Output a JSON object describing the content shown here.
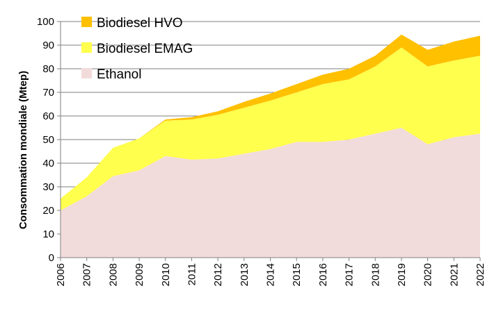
{
  "chart_data": {
    "type": "area",
    "stacked": true,
    "x": [
      "2006",
      "2007",
      "2008",
      "2009",
      "2010",
      "2011",
      "2012",
      "2013",
      "2014",
      "2015",
      "2016",
      "2017",
      "2018",
      "2019",
      "2020",
      "2021",
      "2022"
    ],
    "series": [
      {
        "name": "Ethanol",
        "color": "#f2dcdb",
        "values": [
          20,
          26,
          34.5,
          37,
          43,
          41.5,
          42,
          44,
          46,
          49,
          49,
          50,
          52.5,
          55,
          48,
          51,
          52.5
        ]
      },
      {
        "name": "Biodiesel EMAG",
        "color": "#ffff4d",
        "values": [
          5,
          8,
          12,
          13.5,
          15,
          17,
          18.5,
          19.5,
          20.5,
          21,
          24.5,
          25.5,
          28.5,
          34,
          33,
          32.5,
          33
        ]
      },
      {
        "name": "Biodiesel HVO",
        "color": "#ffc000",
        "values": [
          0,
          0,
          0,
          0,
          0.5,
          1,
          1.5,
          2.5,
          3,
          3.5,
          4,
          4.5,
          4.5,
          5.5,
          7,
          8,
          8.5
        ]
      }
    ],
    "legend_order": [
      "Biodiesel HVO",
      "Biodiesel EMAG",
      "Ethanol"
    ],
    "legend_position": "top-left",
    "ylabel": "Consommation mondiale (Mtep)",
    "xlabel": "",
    "ylim": [
      0,
      100
    ],
    "yticks": [
      "0",
      "10",
      "20",
      "30",
      "40",
      "50",
      "60",
      "70",
      "80",
      "90",
      "100"
    ],
    "grid": "horizontal"
  }
}
